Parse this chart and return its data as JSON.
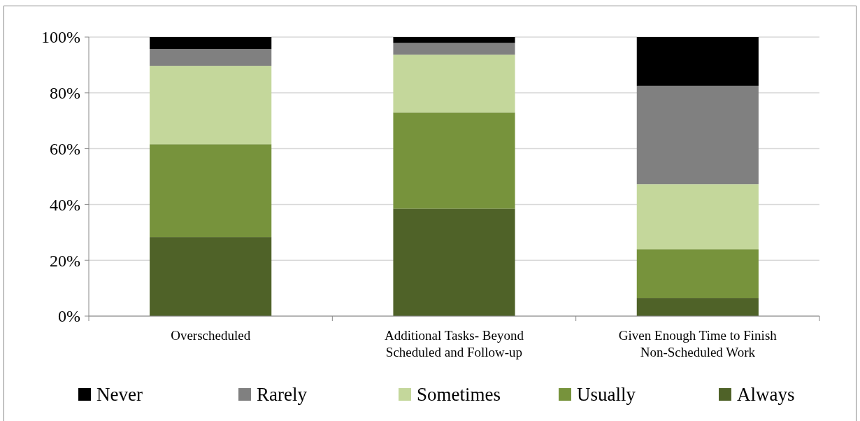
{
  "chart_data": {
    "type": "bar",
    "stacked": true,
    "categories": [
      "Overscheduled",
      "Additional Tasks- Beyond Scheduled and Follow-up",
      "Given Enough Time to Finish Non-Scheduled Work"
    ],
    "series": [
      {
        "name": "Always",
        "color": "#4f6228",
        "values": [
          28.3,
          38.5,
          6.5
        ]
      },
      {
        "name": "Usually",
        "color": "#77933c",
        "values": [
          33.3,
          34.5,
          17.5
        ]
      },
      {
        "name": "Sometimes",
        "color": "#c4d79b",
        "values": [
          28.1,
          20.7,
          23.3
        ]
      },
      {
        "name": "Rarely",
        "color": "#808080",
        "values": [
          6.0,
          4.2,
          35.2
        ]
      },
      {
        "name": "Never",
        "color": "#000000",
        "values": [
          4.3,
          2.1,
          17.5
        ]
      }
    ],
    "ylim": [
      0,
      100
    ],
    "yticks": [
      {
        "value": 0,
        "label": "0%"
      },
      {
        "value": 20,
        "label": "20%"
      },
      {
        "value": 40,
        "label": "40%"
      },
      {
        "value": 60,
        "label": "60%"
      },
      {
        "value": 80,
        "label": "80%"
      },
      {
        "value": 100,
        "label": "100%"
      }
    ],
    "grid": "y",
    "legend": "bottom"
  }
}
